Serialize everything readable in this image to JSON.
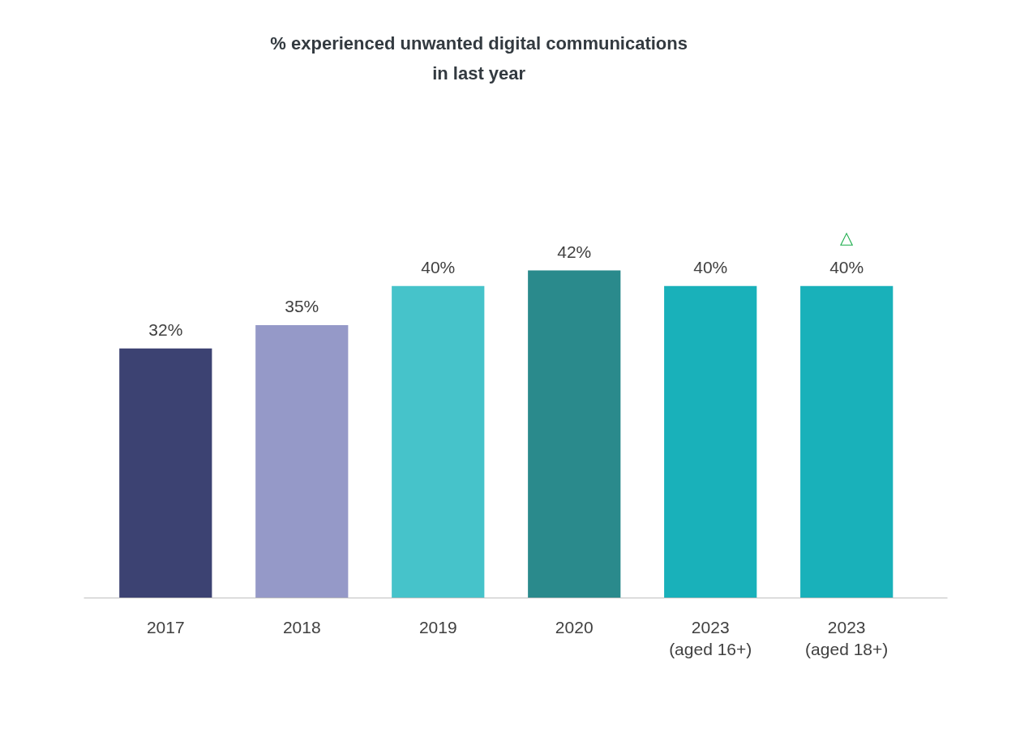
{
  "chart_data": {
    "type": "bar",
    "title": "% experienced unwanted digital communications\nin last year",
    "categories": [
      "2017",
      "2018",
      "2019",
      "2020",
      "2023\n(aged 16+)",
      "2023\n(aged 18+)"
    ],
    "values": [
      32,
      35,
      40,
      42,
      40,
      40
    ],
    "colors": [
      "#3c4272",
      "#9599c8",
      "#46c3ca",
      "#2a8a8c",
      "#19b1ba",
      "#19b1ba"
    ],
    "value_labels": [
      "32%",
      "35%",
      "40%",
      "42%",
      "40%",
      "40%"
    ],
    "grid": false,
    "annotations": [
      {
        "text": "△",
        "x": "2023\n(aged 18+)",
        "y": 40
      }
    ]
  }
}
